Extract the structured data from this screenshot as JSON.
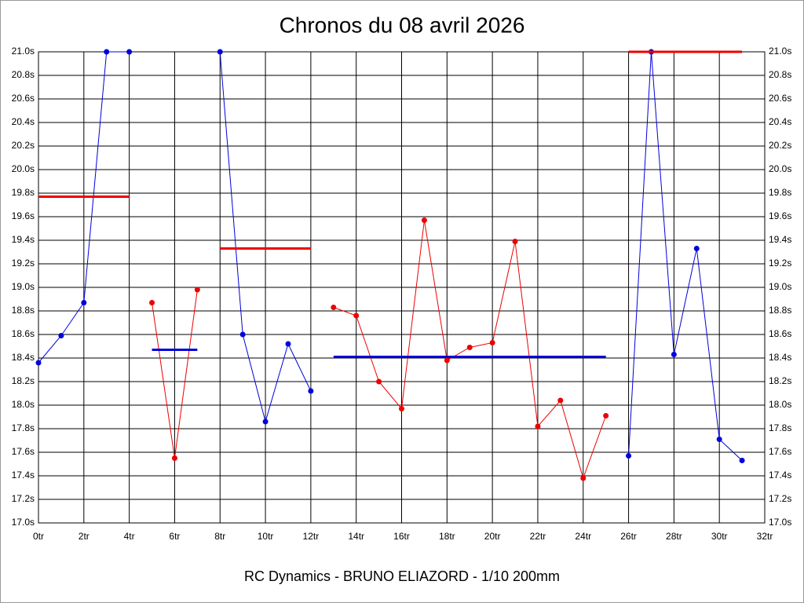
{
  "chart_data": {
    "type": "line",
    "title": "Chronos du 08 avril 2026",
    "footer": "RC Dynamics - BRUNO ELIAZORD - 1/10 200mm",
    "xlim": [
      0,
      32
    ],
    "xticks": [
      {
        "value": 0,
        "label": "0tr"
      },
      {
        "value": 2,
        "label": "2tr"
      },
      {
        "value": 4,
        "label": "4tr"
      },
      {
        "value": 6,
        "label": "6tr"
      },
      {
        "value": 8,
        "label": "8tr"
      },
      {
        "value": 10,
        "label": "10tr"
      },
      {
        "value": 12,
        "label": "12tr"
      },
      {
        "value": 14,
        "label": "14tr"
      },
      {
        "value": 16,
        "label": "16tr"
      },
      {
        "value": 18,
        "label": "18tr"
      },
      {
        "value": 20,
        "label": "20tr"
      },
      {
        "value": 22,
        "label": "22tr"
      },
      {
        "value": 24,
        "label": "24tr"
      },
      {
        "value": 26,
        "label": "26tr"
      },
      {
        "value": 28,
        "label": "28tr"
      },
      {
        "value": 30,
        "label": "30tr"
      },
      {
        "value": 32,
        "label": "32tr"
      }
    ],
    "ylim": [
      17.0,
      21.0
    ],
    "yticks": [
      {
        "value": 17.0,
        "label": "17.0s"
      },
      {
        "value": 17.2,
        "label": "17.2s"
      },
      {
        "value": 17.4,
        "label": "17.4s"
      },
      {
        "value": 17.6,
        "label": "17.6s"
      },
      {
        "value": 17.8,
        "label": "17.8s"
      },
      {
        "value": 18.0,
        "label": "18.0s"
      },
      {
        "value": 18.2,
        "label": "18.2s"
      },
      {
        "value": 18.4,
        "label": "18.4s"
      },
      {
        "value": 18.6,
        "label": "18.6s"
      },
      {
        "value": 18.8,
        "label": "18.8s"
      },
      {
        "value": 19.0,
        "label": "19.0s"
      },
      {
        "value": 19.2,
        "label": "19.2s"
      },
      {
        "value": 19.4,
        "label": "19.4s"
      },
      {
        "value": 19.6,
        "label": "19.6s"
      },
      {
        "value": 19.8,
        "label": "19.8s"
      },
      {
        "value": 20.0,
        "label": "20.0s"
      },
      {
        "value": 20.2,
        "label": "20.2s"
      },
      {
        "value": 20.4,
        "label": "20.4s"
      },
      {
        "value": 20.6,
        "label": "20.6s"
      },
      {
        "value": 20.8,
        "label": "20.8s"
      },
      {
        "value": 21.0,
        "label": "21.0s"
      }
    ],
    "grid": true,
    "series": [
      {
        "color": "#0000dd",
        "markers": true,
        "x": [
          0,
          1,
          2,
          3,
          4
        ],
        "values": [
          18.36,
          18.59,
          18.87,
          21.0,
          21.0
        ]
      },
      {
        "color": "#ee0000",
        "markers": false,
        "x": [
          0,
          4
        ],
        "values": [
          19.77,
          19.77
        ]
      },
      {
        "color": "#ee0000",
        "markers": true,
        "x": [
          5,
          6,
          7
        ],
        "values": [
          18.87,
          17.55,
          18.98
        ]
      },
      {
        "color": "#0000dd",
        "markers": false,
        "x": [
          5,
          7
        ],
        "values": [
          18.47,
          18.47
        ]
      },
      {
        "color": "#0000dd",
        "markers": true,
        "x": [
          8,
          9,
          10,
          11,
          12
        ],
        "values": [
          21.0,
          18.6,
          17.86,
          18.52,
          18.12
        ]
      },
      {
        "color": "#ee0000",
        "markers": false,
        "x": [
          8,
          12
        ],
        "values": [
          19.33,
          19.33
        ]
      },
      {
        "color": "#ee0000",
        "markers": true,
        "x": [
          13,
          14,
          15,
          16,
          17,
          18,
          19,
          20,
          21,
          22,
          23,
          24,
          25
        ],
        "values": [
          18.83,
          18.76,
          18.2,
          17.97,
          19.57,
          18.38,
          18.49,
          18.53,
          19.39,
          17.82,
          18.04,
          17.38,
          17.91
        ]
      },
      {
        "color": "#0000dd",
        "markers": false,
        "x": [
          13,
          25
        ],
        "values": [
          18.41,
          18.41
        ]
      },
      {
        "color": "#0000dd",
        "markers": true,
        "x": [
          26,
          27,
          28,
          29,
          30,
          31
        ],
        "values": [
          17.57,
          21.0,
          18.43,
          19.33,
          17.71,
          17.53
        ]
      },
      {
        "color": "#ee0000",
        "markers": false,
        "x": [
          26,
          31
        ],
        "values": [
          21.0,
          21.0
        ]
      }
    ]
  }
}
